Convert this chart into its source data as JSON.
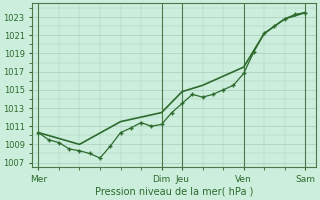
{
  "bg_color": "#cceedd",
  "grid_color": "#aaccbb",
  "line_color": "#2d6a2d",
  "title": "Pression niveau de la mer( hPa )",
  "ylim": [
    1006.5,
    1024.5
  ],
  "yticks": [
    1007,
    1009,
    1011,
    1013,
    1015,
    1017,
    1019,
    1021,
    1023
  ],
  "xtick_labels": [
    "Mer",
    "Dim",
    "Jeu",
    "Ven",
    "Sam"
  ],
  "xtick_positions": [
    0,
    6,
    7,
    10,
    13
  ],
  "vline_positions": [
    0,
    6,
    7,
    10,
    13
  ],
  "xlim": [
    -0.3,
    13.5
  ],
  "line1_x": [
    0,
    0.5,
    1,
    1.5,
    2,
    2.5,
    3,
    3.5,
    4,
    4.5,
    5,
    5.5,
    6,
    6.5,
    7,
    7.5,
    8,
    8.5,
    9,
    9.5,
    10,
    10.5,
    11,
    11.5,
    12,
    12.5,
    13
  ],
  "line1_y": [
    1010.3,
    1009.5,
    1009.2,
    1008.5,
    1008.3,
    1008.0,
    1007.5,
    1008.8,
    1010.3,
    1010.8,
    1011.4,
    1011.0,
    1011.2,
    1012.5,
    1013.5,
    1014.5,
    1014.2,
    1014.5,
    1015.0,
    1015.5,
    1016.8,
    1019.2,
    1021.2,
    1022.0,
    1022.8,
    1023.3,
    1023.5
  ],
  "line2_x": [
    0,
    2,
    4,
    6,
    7,
    8,
    9,
    10,
    11,
    12,
    13
  ],
  "line2_y": [
    1010.3,
    1009.0,
    1011.5,
    1012.5,
    1014.8,
    1015.5,
    1016.5,
    1017.5,
    1021.2,
    1022.8,
    1023.5
  ],
  "ytick_fontsize": 6,
  "xtick_fontsize": 6.5,
  "xlabel_fontsize": 7
}
